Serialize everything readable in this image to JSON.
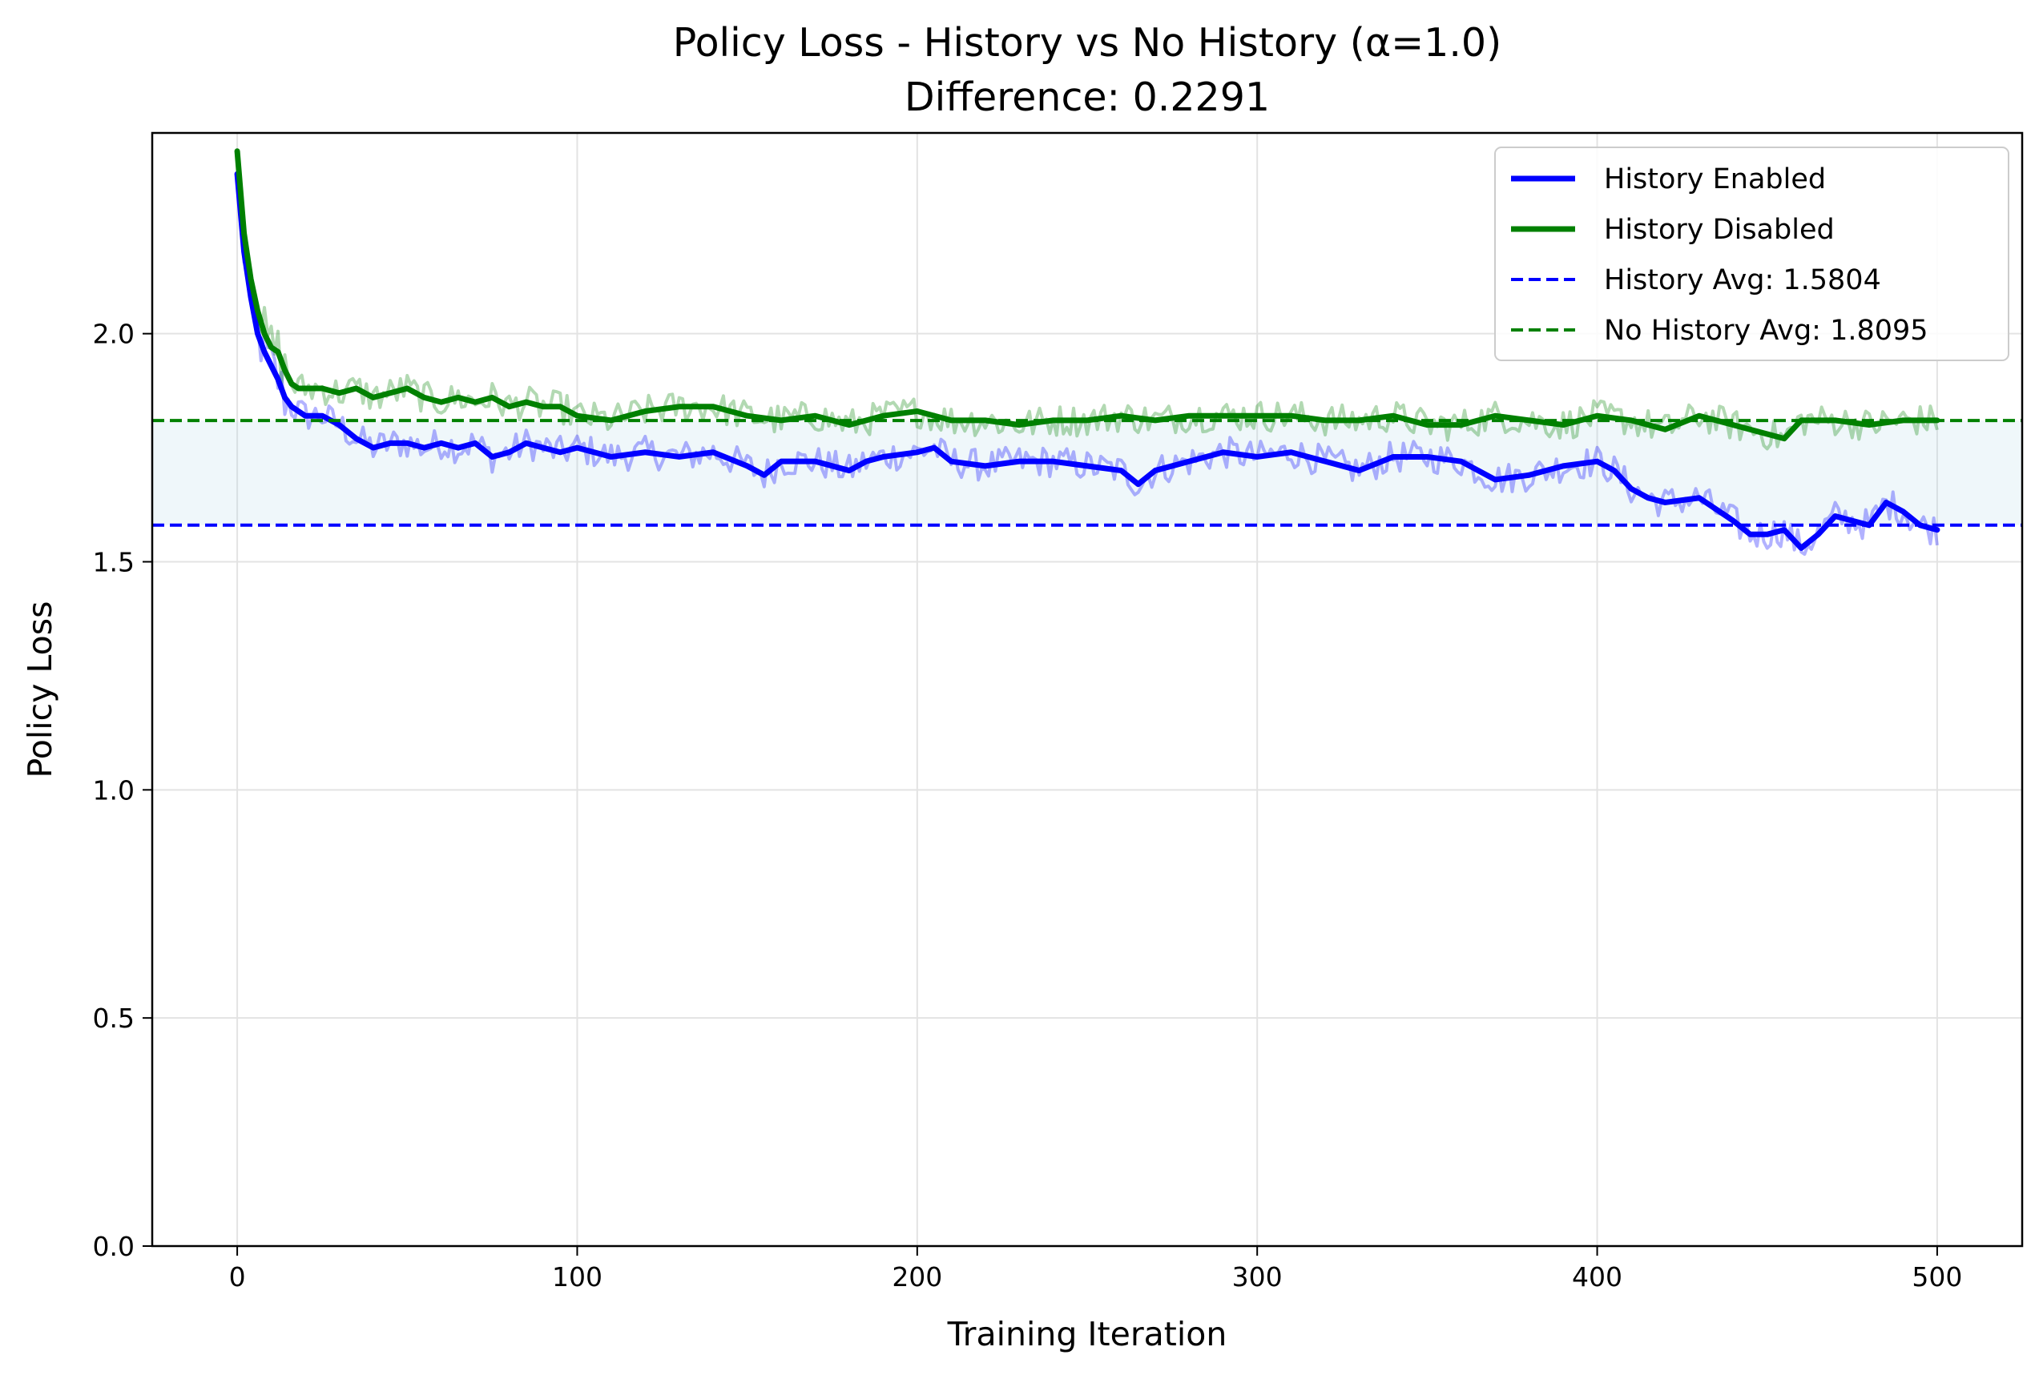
{
  "chart_data": {
    "type": "line",
    "title": "Policy Loss - History vs No History (α=1.0)",
    "subtitle": "Difference: 0.2291",
    "xlabel": "Training Iteration",
    "ylabel": "Policy Loss",
    "xlim": [
      -25,
      525
    ],
    "ylim": [
      0,
      2.44
    ],
    "xticks": [
      0,
      100,
      200,
      300,
      400,
      500
    ],
    "yticks": [
      0.0,
      0.5,
      1.0,
      1.5,
      2.0
    ],
    "xtick_labels": [
      "0",
      "100",
      "200",
      "300",
      "400",
      "500"
    ],
    "ytick_labels": [
      "0.0",
      "0.5",
      "1.0",
      "1.5",
      "2.0"
    ],
    "grid": true,
    "legend_position": "top-right",
    "series": [
      {
        "name": "History Enabled",
        "color": "#0000ff",
        "style": "solid",
        "smoothed": {
          "x": [
            0,
            2,
            4,
            6,
            8,
            10,
            12,
            14,
            16,
            18,
            20,
            25,
            30,
            35,
            40,
            45,
            50,
            55,
            60,
            65,
            70,
            75,
            80,
            85,
            90,
            95,
            100,
            110,
            120,
            130,
            140,
            150,
            155,
            160,
            170,
            180,
            185,
            190,
            200,
            205,
            210,
            220,
            230,
            240,
            250,
            260,
            265,
            270,
            280,
            290,
            300,
            310,
            320,
            330,
            340,
            350,
            360,
            370,
            380,
            390,
            400,
            405,
            410,
            415,
            420,
            430,
            440,
            445,
            450,
            455,
            460,
            465,
            470,
            480,
            485,
            490,
            495,
            500
          ],
          "y": [
            2.35,
            2.18,
            2.08,
            2.0,
            1.96,
            1.93,
            1.9,
            1.86,
            1.84,
            1.83,
            1.82,
            1.82,
            1.8,
            1.77,
            1.75,
            1.76,
            1.76,
            1.75,
            1.76,
            1.75,
            1.76,
            1.73,
            1.74,
            1.76,
            1.75,
            1.74,
            1.75,
            1.73,
            1.74,
            1.73,
            1.74,
            1.71,
            1.69,
            1.72,
            1.72,
            1.7,
            1.72,
            1.73,
            1.74,
            1.75,
            1.72,
            1.71,
            1.72,
            1.72,
            1.71,
            1.7,
            1.67,
            1.7,
            1.72,
            1.74,
            1.73,
            1.74,
            1.72,
            1.7,
            1.73,
            1.73,
            1.72,
            1.68,
            1.69,
            1.71,
            1.72,
            1.7,
            1.66,
            1.64,
            1.63,
            1.64,
            1.59,
            1.56,
            1.56,
            1.57,
            1.53,
            1.56,
            1.6,
            1.58,
            1.63,
            1.61,
            1.58,
            1.57
          ]
        }
      },
      {
        "name": "History Disabled",
        "color": "#008000",
        "style": "solid",
        "smoothed": {
          "x": [
            0,
            2,
            4,
            6,
            8,
            10,
            12,
            14,
            16,
            18,
            20,
            25,
            30,
            35,
            40,
            45,
            50,
            55,
            60,
            65,
            70,
            75,
            80,
            85,
            90,
            95,
            100,
            110,
            120,
            130,
            140,
            150,
            160,
            170,
            180,
            190,
            200,
            210,
            220,
            230,
            240,
            250,
            260,
            270,
            280,
            290,
            300,
            310,
            320,
            330,
            340,
            350,
            360,
            370,
            380,
            390,
            400,
            410,
            420,
            430,
            440,
            450,
            455,
            460,
            470,
            480,
            490,
            500
          ],
          "y": [
            2.4,
            2.22,
            2.12,
            2.05,
            2.0,
            1.97,
            1.96,
            1.92,
            1.89,
            1.88,
            1.88,
            1.88,
            1.87,
            1.88,
            1.86,
            1.87,
            1.88,
            1.86,
            1.85,
            1.86,
            1.85,
            1.86,
            1.84,
            1.85,
            1.84,
            1.84,
            1.82,
            1.81,
            1.83,
            1.84,
            1.84,
            1.82,
            1.81,
            1.82,
            1.8,
            1.82,
            1.83,
            1.81,
            1.81,
            1.8,
            1.81,
            1.81,
            1.82,
            1.81,
            1.82,
            1.82,
            1.82,
            1.82,
            1.81,
            1.81,
            1.82,
            1.8,
            1.8,
            1.82,
            1.81,
            1.8,
            1.82,
            1.81,
            1.79,
            1.82,
            1.8,
            1.78,
            1.77,
            1.81,
            1.81,
            1.8,
            1.81,
            1.81
          ]
        }
      }
    ],
    "reference_lines": [
      {
        "name": "History Avg: 1.5804",
        "y": 1.5804,
        "color": "#0000ff",
        "style": "dashed"
      },
      {
        "name": "No History Avg: 1.8095",
        "y": 1.8095,
        "color": "#008000",
        "style": "dashed"
      }
    ],
    "band": {
      "y_from": 1.5804,
      "y_to": 1.8095,
      "color": "#add8e6"
    }
  }
}
